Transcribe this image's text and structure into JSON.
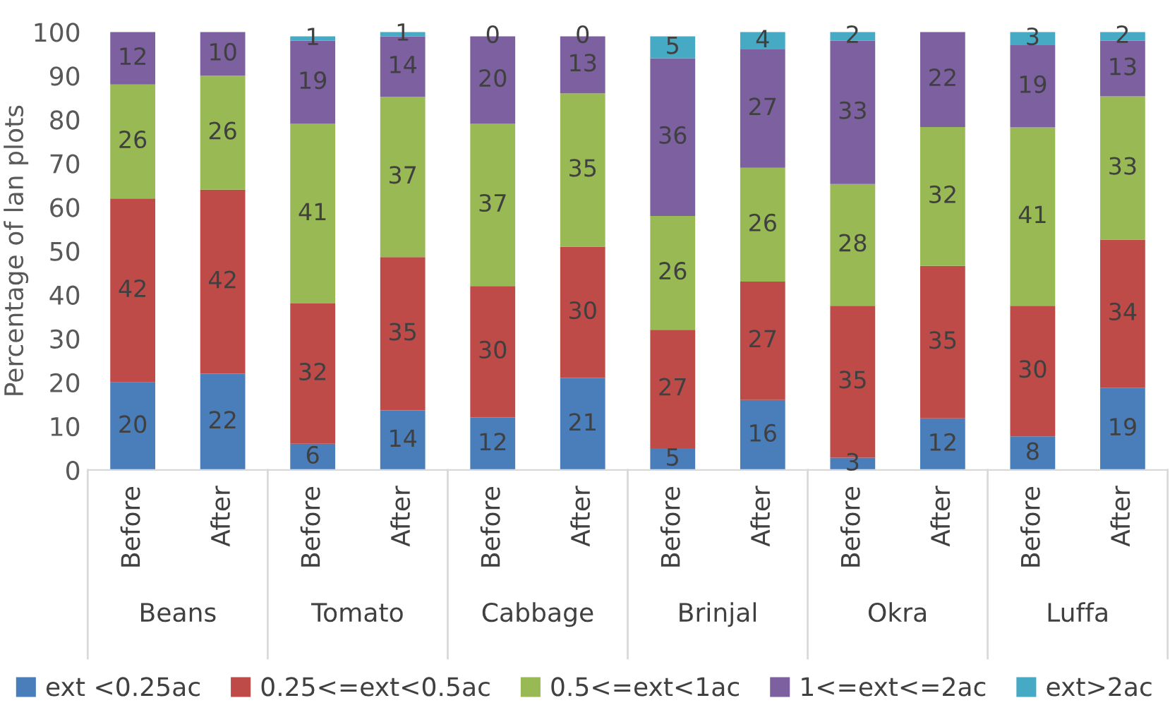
{
  "chart_data": {
    "type": "bar",
    "stacked": true,
    "ylabel": "Percentage of lan plots",
    "categories": [
      "Before",
      "After",
      "Before",
      "After",
      "Before",
      "After",
      "Before",
      "After",
      "Before",
      "After",
      "Before",
      "After"
    ],
    "series": [
      {
        "name": "ext <0.25ac",
        "color": "#4a7ebb",
        "values": [
          20,
          22,
          6,
          13.6,
          12,
          21,
          5,
          16,
          2.8,
          11.8,
          7.7,
          18.8
        ],
        "value_labels": [
          "20",
          "22",
          "6",
          "14",
          "12",
          "21",
          "5",
          "16",
          "3",
          "12",
          "8",
          "19"
        ]
      },
      {
        "name": "0.25<=ext<0.5ac",
        "color": "#be4b48",
        "values": [
          42,
          42,
          32,
          35,
          30,
          30,
          27,
          27,
          34.7,
          34.8,
          29.8,
          33.8
        ],
        "value_labels": [
          "42",
          "42",
          "32",
          "35",
          "30",
          "30",
          "27",
          "27",
          "35",
          "35",
          "30",
          "34"
        ]
      },
      {
        "name": "0.5<=ext<1ac",
        "color": "#98b954",
        "values": [
          26,
          26,
          41,
          36.6,
          37,
          35,
          26,
          26,
          27.8,
          31.7,
          40.7,
          32.7
        ],
        "value_labels": [
          "26",
          "26",
          "41",
          "37",
          "37",
          "35",
          "26",
          "26",
          "28",
          "32",
          "41",
          "33"
        ]
      },
      {
        "name": "1<=ext<=2ac",
        "color": "#7d60a0",
        "values": [
          12,
          10,
          19,
          13.8,
          20,
          13,
          36,
          27,
          32.7,
          21.7,
          18.8,
          12.7
        ],
        "value_labels": [
          "12",
          "10",
          "19",
          "14",
          "20",
          "13",
          "36",
          "27",
          "33",
          "22",
          "19",
          "13"
        ]
      },
      {
        "name": "ext>2ac",
        "color": "#46aac5",
        "values": [
          null,
          null,
          1,
          1,
          0,
          0,
          5,
          4,
          2,
          null,
          3,
          2
        ],
        "value_labels": [
          null,
          null,
          "1",
          "1",
          "0",
          "0",
          "5",
          "4",
          "2",
          null,
          "3",
          "2"
        ]
      }
    ],
    "annotations": [
      "Beans",
      "Tomato",
      "Cabbage",
      "Brinjal",
      "Okra",
      "Luffa"
    ],
    "ylim": [
      0,
      100
    ],
    "yticks": [
      0,
      10,
      20,
      30,
      40,
      50,
      60,
      70,
      80,
      90,
      100
    ],
    "legend": "bottom",
    "grid": false
  }
}
